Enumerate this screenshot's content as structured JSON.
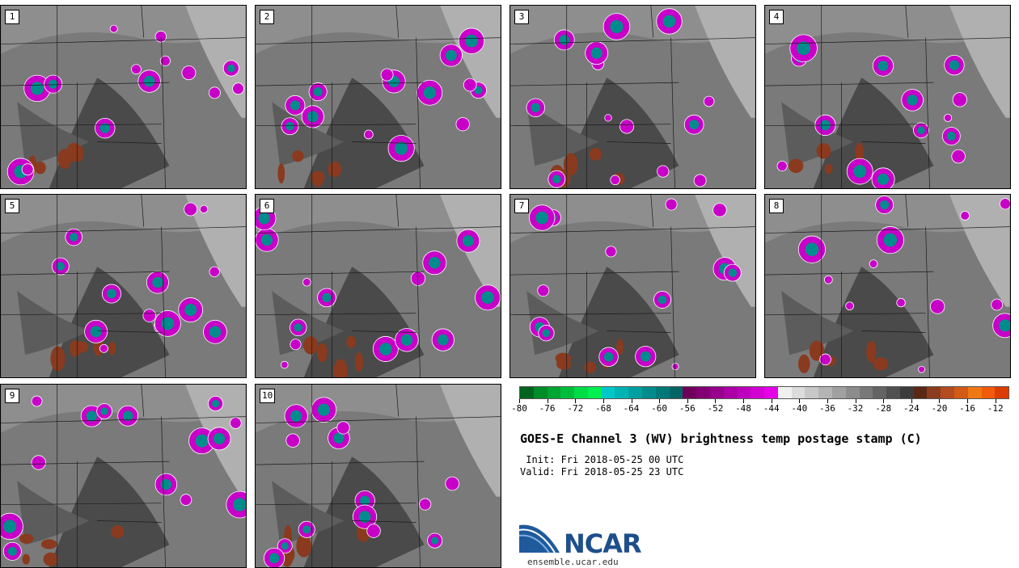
{
  "panels": [
    {
      "label": "1"
    },
    {
      "label": "2"
    },
    {
      "label": "3"
    },
    {
      "label": "4"
    },
    {
      "label": "5"
    },
    {
      "label": "6"
    },
    {
      "label": "7"
    },
    {
      "label": "8"
    },
    {
      "label": "9"
    },
    {
      "label": "10"
    }
  ],
  "colorbar": {
    "colors": [
      "#00641e",
      "#008c28",
      "#00a532",
      "#00be3c",
      "#00dc46",
      "#00f050",
      "#00c8c8",
      "#00b4b4",
      "#00a0a0",
      "#008c8c",
      "#007878",
      "#006464",
      "#6e005a",
      "#820073",
      "#96008c",
      "#aa00a5",
      "#be00be",
      "#d200d2",
      "#e600e6",
      "#f0f0f0",
      "#dcdcdc",
      "#c8c8c8",
      "#b4b4b4",
      "#a0a0a0",
      "#8c8c8c",
      "#787878",
      "#646464",
      "#505050",
      "#3c3c3c",
      "#5a2814",
      "#8c3c1e",
      "#b44b1e",
      "#d25a14",
      "#f07814",
      "#f05a0a",
      "#dc3c00"
    ],
    "tick_labels": [
      "-80",
      "-76",
      "-72",
      "-68",
      "-64",
      "-60",
      "-56",
      "-52",
      "-48",
      "-44",
      "-40",
      "-36",
      "-32",
      "-28",
      "-24",
      "-20",
      "-16",
      "-12"
    ],
    "range": [
      -80,
      -10
    ]
  },
  "title": "GOES-E Channel 3 (WV) brightness temp postage stamp (C)",
  "init_line": " Init: Fri 2018-05-25 00 UTC",
  "valid_line": "Valid: Fri 2018-05-25 23 UTC",
  "logo": {
    "text": "NCAR",
    "url": "ensemble.ucar.edu"
  }
}
